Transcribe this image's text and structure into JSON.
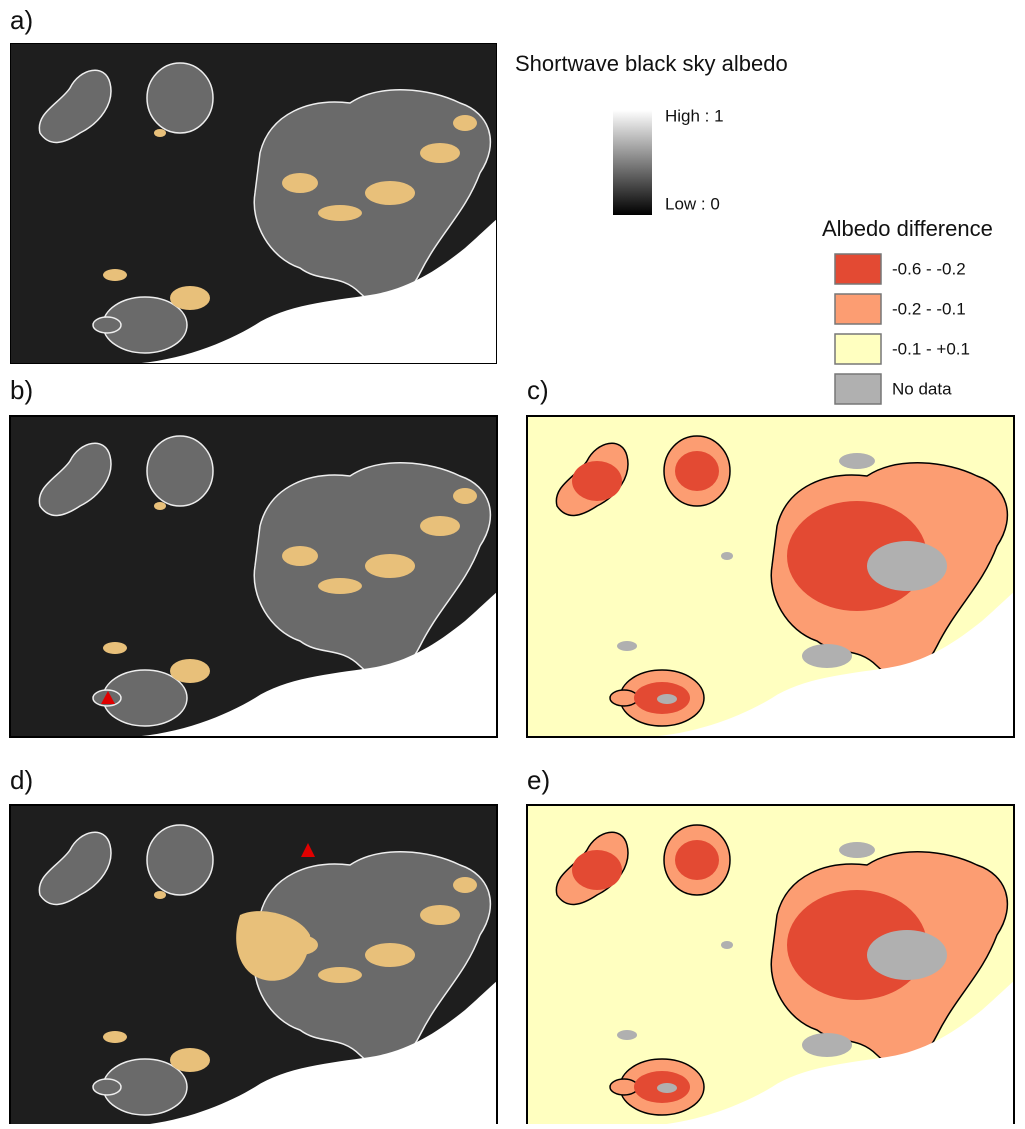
{
  "panels": [
    {
      "label": "a)"
    },
    {
      "label": "b)"
    },
    {
      "label": "c)"
    },
    {
      "label": "d)"
    },
    {
      "label": "e)"
    }
  ],
  "legend": {
    "albedo": {
      "title": "Shortwave black sky albedo",
      "high": "High : 1",
      "low": "Low : 0"
    },
    "difference": {
      "title": "Albedo difference",
      "classes": [
        {
          "label": "-0.6 - -0.2",
          "color": "#e34a33"
        },
        {
          "label": "-0.2 - -0.1",
          "color": "#fc9d72"
        },
        {
          "label": "-0.1 - +0.1",
          "color": "#ffffc0"
        },
        {
          "label": "No data",
          "color": "#b0b0b0"
        }
      ]
    }
  }
}
